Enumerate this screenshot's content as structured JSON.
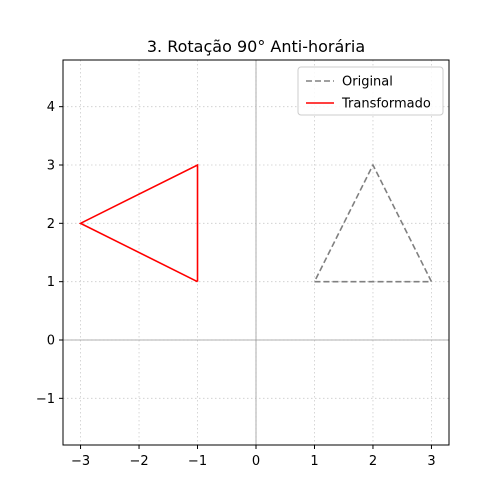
{
  "chart_data": {
    "type": "line",
    "title": "3. Rotação 90° Anti-horária",
    "xlabel": "",
    "ylabel": "",
    "xlim": [
      -3.3,
      3.3
    ],
    "ylim": [
      -1.8,
      4.8
    ],
    "x_ticks": [
      -3,
      -2,
      -1,
      0,
      1,
      2,
      3
    ],
    "y_ticks": [
      -1,
      0,
      1,
      2,
      3,
      4
    ],
    "x_tick_labels": [
      "−3",
      "−2",
      "−1",
      "0",
      "1",
      "2",
      "3"
    ],
    "y_tick_labels": [
      "−1",
      "0",
      "1",
      "2",
      "3",
      "4"
    ],
    "grid": true,
    "grid_style": "dotted",
    "reference_lines": {
      "x": 0,
      "y": 0
    },
    "legend_placement": "top-right",
    "series": [
      {
        "name": "Original",
        "color": "#808080",
        "line_style": "dashed",
        "points": [
          [
            1,
            1
          ],
          [
            3,
            1
          ],
          [
            2,
            3
          ],
          [
            1,
            1
          ]
        ]
      },
      {
        "name": "Transformado",
        "color": "#ff0000",
        "line_style": "solid",
        "points": [
          [
            -1,
            1
          ],
          [
            -1,
            3
          ],
          [
            -3,
            2
          ],
          [
            -1,
            1
          ]
        ]
      }
    ]
  }
}
